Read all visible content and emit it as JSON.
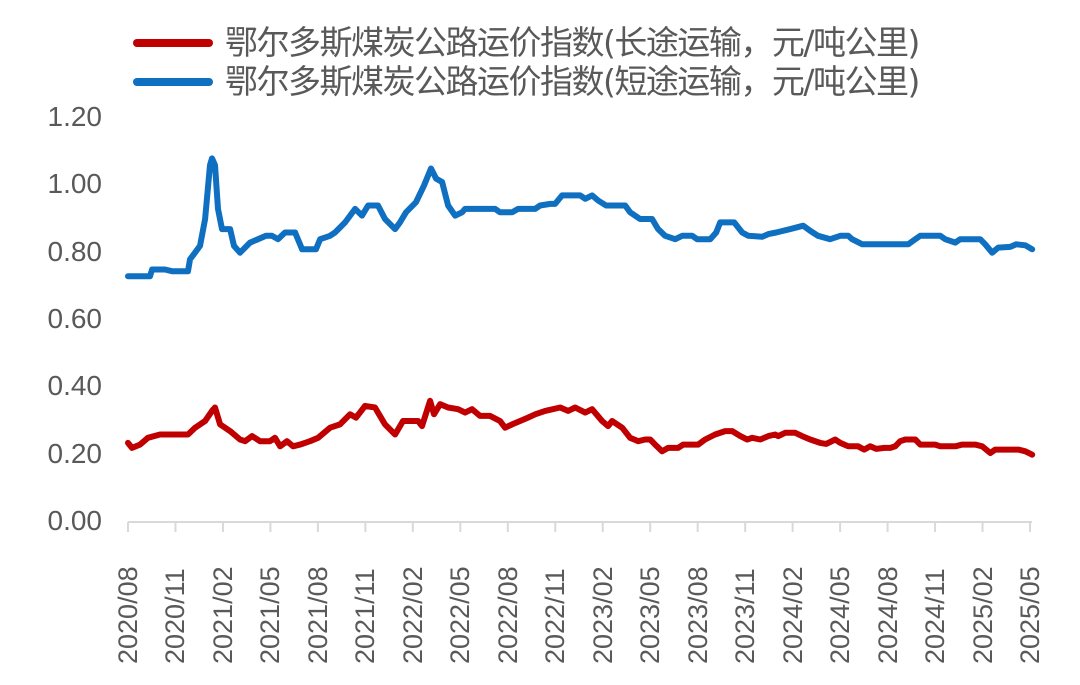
{
  "chart_data": {
    "type": "line",
    "title": "",
    "xlabel": "",
    "ylabel": "",
    "ylim": [
      0,
      1.2
    ],
    "yticks": [
      "0.00",
      "0.20",
      "0.40",
      "0.60",
      "0.80",
      "1.00",
      "1.20"
    ],
    "grid": false,
    "legend_position": "top",
    "x_tick_labels": [
      "2020/08",
      "2020/11",
      "2021/02",
      "2021/05",
      "2021/08",
      "2021/11",
      "2022/02",
      "2022/05",
      "2022/08",
      "2022/11",
      "2023/02",
      "2023/05",
      "2023/08",
      "2023/11",
      "2024/02",
      "2024/05",
      "2024/08",
      "2024/11",
      "2025/02",
      "2025/05"
    ],
    "x_unit": "months since 2020/08",
    "x_range": [
      0,
      57
    ],
    "series": [
      {
        "name": "鄂尔多斯煤炭公路运价指数(长途运输，元/吨公里)",
        "color": "#C00000",
        "points": [
          [
            0,
            0.235
          ],
          [
            0.25,
            0.22
          ],
          [
            0.76,
            0.23
          ],
          [
            1.26,
            0.25
          ],
          [
            2.02,
            0.26
          ],
          [
            3.79,
            0.26
          ],
          [
            4.24,
            0.28
          ],
          [
            4.87,
            0.3
          ],
          [
            5.31,
            0.33
          ],
          [
            5.5,
            0.34
          ],
          [
            5.82,
            0.29
          ],
          [
            6.45,
            0.27
          ],
          [
            7.08,
            0.245
          ],
          [
            7.4,
            0.24
          ],
          [
            7.84,
            0.255
          ],
          [
            8.34,
            0.24
          ],
          [
            8.97,
            0.24
          ],
          [
            9.29,
            0.25
          ],
          [
            9.61,
            0.225
          ],
          [
            10.05,
            0.24
          ],
          [
            10.43,
            0.225
          ],
          [
            10.87,
            0.23
          ],
          [
            11.5,
            0.24
          ],
          [
            12.01,
            0.25
          ],
          [
            12.77,
            0.28
          ],
          [
            13.4,
            0.29
          ],
          [
            14.03,
            0.32
          ],
          [
            14.41,
            0.31
          ],
          [
            14.98,
            0.345
          ],
          [
            15.61,
            0.34
          ],
          [
            16.24,
            0.29
          ],
          [
            16.88,
            0.26
          ],
          [
            17.38,
            0.3
          ],
          [
            18.33,
            0.3
          ],
          [
            18.58,
            0.285
          ],
          [
            19.09,
            0.36
          ],
          [
            19.34,
            0.32
          ],
          [
            19.72,
            0.35
          ],
          [
            20.23,
            0.34
          ],
          [
            20.86,
            0.335
          ],
          [
            21.3,
            0.325
          ],
          [
            21.74,
            0.335
          ],
          [
            22.25,
            0.315
          ],
          [
            22.88,
            0.315
          ],
          [
            23.51,
            0.3
          ],
          [
            23.83,
            0.28
          ],
          [
            24.27,
            0.29
          ],
          [
            24.78,
            0.3
          ],
          [
            25.28,
            0.31
          ],
          [
            25.73,
            0.32
          ],
          [
            26.36,
            0.33
          ],
          [
            27.31,
            0.34
          ],
          [
            27.81,
            0.33
          ],
          [
            28.26,
            0.34
          ],
          [
            28.89,
            0.325
          ],
          [
            29.33,
            0.335
          ],
          [
            29.96,
            0.3
          ],
          [
            30.34,
            0.285
          ],
          [
            30.59,
            0.3
          ],
          [
            31.23,
            0.28
          ],
          [
            31.73,
            0.25
          ],
          [
            32.24,
            0.24
          ],
          [
            32.68,
            0.245
          ],
          [
            33.0,
            0.245
          ],
          [
            33.31,
            0.23
          ],
          [
            33.75,
            0.21
          ],
          [
            34.13,
            0.22
          ],
          [
            34.77,
            0.22
          ],
          [
            35.08,
            0.23
          ],
          [
            36.03,
            0.23
          ],
          [
            36.47,
            0.245
          ],
          [
            37.1,
            0.26
          ],
          [
            37.74,
            0.27
          ],
          [
            38.18,
            0.27
          ],
          [
            38.69,
            0.255
          ],
          [
            39.13,
            0.245
          ],
          [
            39.44,
            0.25
          ],
          [
            39.95,
            0.245
          ],
          [
            40.46,
            0.255
          ],
          [
            40.9,
            0.26
          ],
          [
            41.09,
            0.255
          ],
          [
            41.53,
            0.265
          ],
          [
            42.16,
            0.265
          ],
          [
            42.6,
            0.255
          ],
          [
            43.11,
            0.245
          ],
          [
            43.74,
            0.235
          ],
          [
            44.12,
            0.232
          ],
          [
            44.69,
            0.245
          ],
          [
            45.01,
            0.235
          ],
          [
            45.51,
            0.225
          ],
          [
            46.14,
            0.225
          ],
          [
            46.52,
            0.215
          ],
          [
            46.9,
            0.225
          ],
          [
            47.28,
            0.217
          ],
          [
            47.79,
            0.22
          ],
          [
            48.17,
            0.22
          ],
          [
            48.48,
            0.225
          ],
          [
            48.8,
            0.24
          ],
          [
            49.12,
            0.245
          ],
          [
            49.75,
            0.245
          ],
          [
            50.06,
            0.23
          ],
          [
            51.01,
            0.23
          ],
          [
            51.33,
            0.225
          ],
          [
            52.28,
            0.225
          ],
          [
            52.72,
            0.23
          ],
          [
            53.54,
            0.23
          ],
          [
            53.98,
            0.225
          ],
          [
            54.49,
            0.205
          ],
          [
            54.8,
            0.215
          ],
          [
            56.26,
            0.215
          ],
          [
            56.7,
            0.21
          ],
          [
            57.14,
            0.2
          ]
        ]
      },
      {
        "name": "鄂尔多斯煤炭公路运价指数(短途运输，元/吨公里)",
        "color": "#0F6FC0",
        "points": [
          [
            0,
            0.73
          ],
          [
            1.39,
            0.73
          ],
          [
            1.52,
            0.75
          ],
          [
            2.34,
            0.75
          ],
          [
            2.78,
            0.745
          ],
          [
            3.79,
            0.745
          ],
          [
            3.92,
            0.78
          ],
          [
            4.55,
            0.82
          ],
          [
            4.87,
            0.9
          ],
          [
            5.18,
            1.06
          ],
          [
            5.31,
            1.08
          ],
          [
            5.5,
            1.06
          ],
          [
            5.69,
            0.93
          ],
          [
            5.94,
            0.87
          ],
          [
            6.45,
            0.87
          ],
          [
            6.7,
            0.82
          ],
          [
            7.08,
            0.8
          ],
          [
            7.71,
            0.83
          ],
          [
            8.22,
            0.84
          ],
          [
            8.72,
            0.85
          ],
          [
            9.1,
            0.85
          ],
          [
            9.48,
            0.84
          ],
          [
            9.92,
            0.86
          ],
          [
            10.56,
            0.86
          ],
          [
            11.0,
            0.81
          ],
          [
            11.88,
            0.81
          ],
          [
            12.14,
            0.84
          ],
          [
            12.77,
            0.85
          ],
          [
            13.08,
            0.86
          ],
          [
            13.72,
            0.89
          ],
          [
            14.35,
            0.93
          ],
          [
            14.79,
            0.91
          ],
          [
            15.17,
            0.94
          ],
          [
            15.8,
            0.94
          ],
          [
            16.24,
            0.9
          ],
          [
            16.88,
            0.87
          ],
          [
            17.19,
            0.89
          ],
          [
            17.57,
            0.92
          ],
          [
            18.2,
            0.95
          ],
          [
            18.71,
            1.0
          ],
          [
            19.15,
            1.05
          ],
          [
            19.47,
            1.02
          ],
          [
            19.85,
            1.01
          ],
          [
            20.23,
            0.94
          ],
          [
            20.67,
            0.91
          ],
          [
            21.11,
            0.92
          ],
          [
            21.3,
            0.93
          ],
          [
            23.2,
            0.93
          ],
          [
            23.51,
            0.92
          ],
          [
            24.27,
            0.92
          ],
          [
            24.65,
            0.93
          ],
          [
            25.73,
            0.93
          ],
          [
            26.04,
            0.94
          ],
          [
            26.68,
            0.945
          ],
          [
            26.99,
            0.945
          ],
          [
            27.43,
            0.97
          ],
          [
            28.57,
            0.97
          ],
          [
            28.89,
            0.96
          ],
          [
            29.33,
            0.97
          ],
          [
            29.71,
            0.955
          ],
          [
            30.21,
            0.94
          ],
          [
            31.42,
            0.94
          ],
          [
            31.73,
            0.92
          ],
          [
            32.36,
            0.9
          ],
          [
            33.12,
            0.9
          ],
          [
            33.5,
            0.87
          ],
          [
            33.94,
            0.85
          ],
          [
            34.58,
            0.84
          ],
          [
            35.02,
            0.85
          ],
          [
            35.65,
            0.85
          ],
          [
            35.97,
            0.84
          ],
          [
            36.79,
            0.84
          ],
          [
            37.17,
            0.86
          ],
          [
            37.42,
            0.89
          ],
          [
            38.31,
            0.89
          ],
          [
            38.81,
            0.86
          ],
          [
            39.19,
            0.85
          ],
          [
            40.08,
            0.847
          ],
          [
            40.46,
            0.855
          ],
          [
            40.96,
            0.86
          ],
          [
            41.85,
            0.87
          ],
          [
            42.67,
            0.88
          ],
          [
            43.11,
            0.865
          ],
          [
            43.6,
            0.85
          ],
          [
            44.37,
            0.84
          ],
          [
            45.01,
            0.85
          ],
          [
            45.51,
            0.85
          ],
          [
            45.76,
            0.84
          ],
          [
            46.4,
            0.825
          ],
          [
            47.22,
            0.825
          ],
          [
            49.3,
            0.825
          ],
          [
            49.75,
            0.84
          ],
          [
            50.06,
            0.85
          ],
          [
            51.33,
            0.85
          ],
          [
            51.64,
            0.84
          ],
          [
            52.28,
            0.83
          ],
          [
            52.59,
            0.84
          ],
          [
            53.85,
            0.84
          ],
          [
            54.17,
            0.825
          ],
          [
            54.61,
            0.8
          ],
          [
            54.99,
            0.815
          ],
          [
            55.75,
            0.817
          ],
          [
            56.13,
            0.825
          ],
          [
            56.7,
            0.822
          ],
          [
            57.14,
            0.81
          ]
        ]
      }
    ]
  },
  "legend": {
    "items": [
      {
        "label": "鄂尔多斯煤炭公路运价指数(长途运输，元/吨公里)",
        "color": "#C00000"
      },
      {
        "label": "鄂尔多斯煤炭公路运价指数(短途运输，元/吨公里)",
        "color": "#0F6FC0"
      }
    ]
  },
  "axes": {
    "axis_color": "#D9D9D9",
    "text_color": "#595959"
  }
}
